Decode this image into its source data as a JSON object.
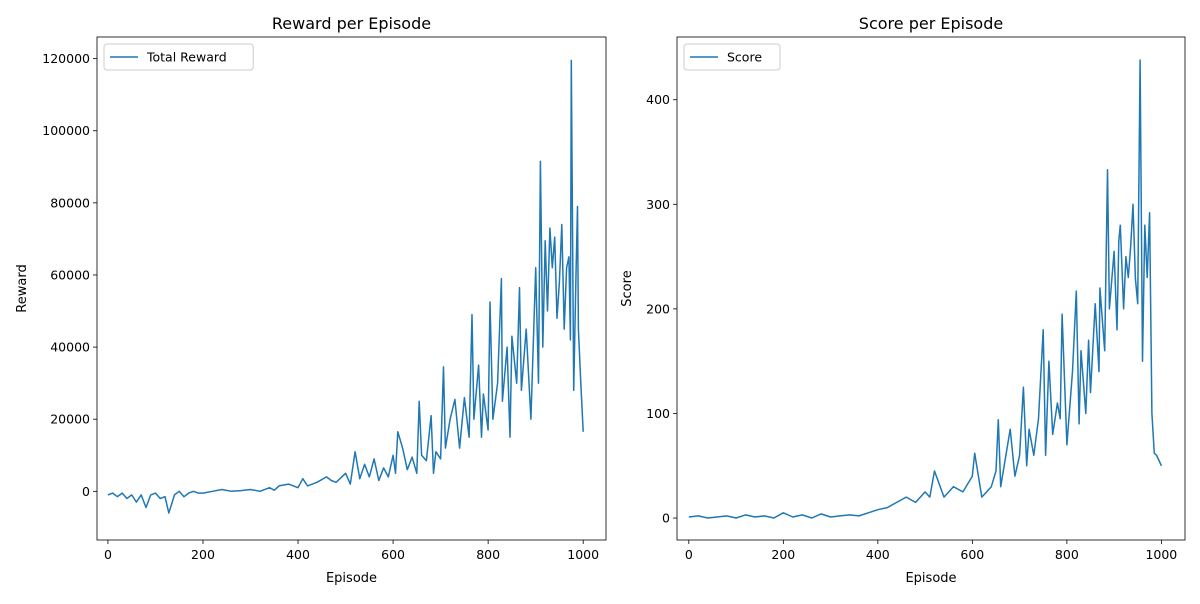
{
  "chart_data": [
    {
      "type": "line",
      "title": "Reward per Episode",
      "xlabel": "Episode",
      "ylabel": "Reward",
      "xlim": [
        -23,
        1048
      ],
      "ylim": [
        -13500,
        126000
      ],
      "xticks": [
        0,
        200,
        400,
        600,
        800,
        1000
      ],
      "xtick_labels": [
        "0",
        "200",
        "400",
        "600",
        "800",
        "1000"
      ],
      "yticks": [
        0,
        20000,
        40000,
        60000,
        80000,
        100000,
        120000
      ],
      "ytick_labels": [
        "0",
        "20000",
        "40000",
        "60000",
        "80000",
        "100000",
        "120000"
      ],
      "grid": false,
      "legend_position": "upper left",
      "color": "#1f77b4",
      "series": [
        {
          "name": "Total Reward",
          "x": [
            0,
            10,
            20,
            30,
            40,
            50,
            60,
            70,
            80,
            90,
            100,
            110,
            120,
            128,
            140,
            150,
            160,
            170,
            180,
            190,
            200,
            220,
            240,
            260,
            280,
            300,
            320,
            340,
            350,
            360,
            380,
            400,
            410,
            420,
            440,
            460,
            470,
            480,
            500,
            510,
            520,
            530,
            540,
            550,
            560,
            570,
            580,
            590,
            600,
            605,
            610,
            620,
            630,
            640,
            650,
            655,
            660,
            670,
            680,
            685,
            690,
            700,
            706,
            710,
            720,
            730,
            740,
            750,
            760,
            766,
            770,
            780,
            786,
            790,
            800,
            804,
            810,
            820,
            828,
            830,
            840,
            846,
            850,
            860,
            866,
            870,
            880,
            890,
            900,
            906,
            910,
            915,
            920,
            925,
            930,
            935,
            940,
            945,
            950,
            955,
            960,
            965,
            970,
            973,
            975,
            980,
            985,
            988,
            990,
            995,
            1000
          ],
          "y": [
            -1000,
            -500,
            -1500,
            -500,
            -2000,
            -1000,
            -3000,
            -1000,
            -4500,
            -1000,
            -500,
            -2000,
            -1500,
            -6000,
            -1000,
            0,
            -1500,
            -500,
            0,
            -500,
            -500,
            0,
            500,
            0,
            200,
            500,
            0,
            1000,
            300,
            1500,
            2000,
            1000,
            3500,
            1500,
            2500,
            4000,
            3000,
            2500,
            5000,
            2000,
            11000,
            3500,
            7500,
            4000,
            9000,
            3000,
            6500,
            4000,
            10000,
            5000,
            16500,
            12000,
            6000,
            9500,
            5000,
            25000,
            10000,
            8500,
            21000,
            5000,
            11000,
            9000,
            34500,
            12000,
            20000,
            25500,
            12000,
            26000,
            15000,
            49000,
            20000,
            35000,
            15000,
            27000,
            17000,
            52500,
            20000,
            30000,
            59000,
            25000,
            40000,
            15000,
            43000,
            30000,
            56500,
            28000,
            45000,
            20000,
            62000,
            30000,
            91500,
            40000,
            69500,
            50000,
            73000,
            62000,
            70500,
            48000,
            58000,
            74000,
            45000,
            62000,
            65000,
            42000,
            119500,
            28000,
            61500,
            79000,
            45000,
            30000,
            16500
          ]
        }
      ]
    },
    {
      "type": "line",
      "title": "Score per Episode",
      "xlabel": "Episode",
      "ylabel": "Score",
      "xlim": [
        -25,
        1050
      ],
      "ylim": [
        -21,
        460
      ],
      "xticks": [
        0,
        200,
        400,
        600,
        800,
        1000
      ],
      "xtick_labels": [
        "0",
        "200",
        "400",
        "600",
        "800",
        "1000"
      ],
      "yticks": [
        0,
        100,
        200,
        300,
        400
      ],
      "ytick_labels": [
        "0",
        "100",
        "200",
        "300",
        "400"
      ],
      "grid": false,
      "legend_position": "upper left",
      "color": "#1f77b4",
      "series": [
        {
          "name": "Score",
          "x": [
            0,
            20,
            40,
            60,
            80,
            100,
            120,
            140,
            160,
            180,
            200,
            220,
            240,
            260,
            280,
            300,
            320,
            340,
            360,
            380,
            400,
            420,
            440,
            460,
            480,
            500,
            510,
            520,
            540,
            560,
            580,
            600,
            605,
            620,
            640,
            650,
            655,
            660,
            680,
            690,
            700,
            708,
            715,
            720,
            730,
            740,
            750,
            755,
            762,
            770,
            780,
            786,
            790,
            800,
            812,
            820,
            826,
            830,
            840,
            846,
            850,
            860,
            868,
            870,
            880,
            886,
            890,
            900,
            906,
            910,
            913,
            920,
            925,
            930,
            935,
            940,
            945,
            950,
            955,
            960,
            965,
            970,
            975,
            980,
            985,
            990,
            995,
            1000
          ],
          "y": [
            1,
            2,
            0,
            1,
            2,
            0,
            3,
            1,
            2,
            0,
            5,
            1,
            3,
            0,
            4,
            1,
            2,
            3,
            2,
            5,
            8,
            10,
            15,
            20,
            15,
            25,
            20,
            45,
            20,
            30,
            25,
            40,
            62,
            20,
            30,
            45,
            94,
            30,
            85,
            40,
            60,
            125,
            50,
            85,
            60,
            95,
            180,
            60,
            150,
            80,
            110,
            95,
            195,
            70,
            140,
            217,
            90,
            160,
            100,
            170,
            120,
            205,
            140,
            220,
            160,
            333,
            200,
            255,
            180,
            265,
            280,
            200,
            250,
            230,
            260,
            300,
            229,
            205,
            438,
            150,
            280,
            230,
            292,
            100,
            62,
            60,
            55,
            50
          ]
        }
      ]
    }
  ]
}
